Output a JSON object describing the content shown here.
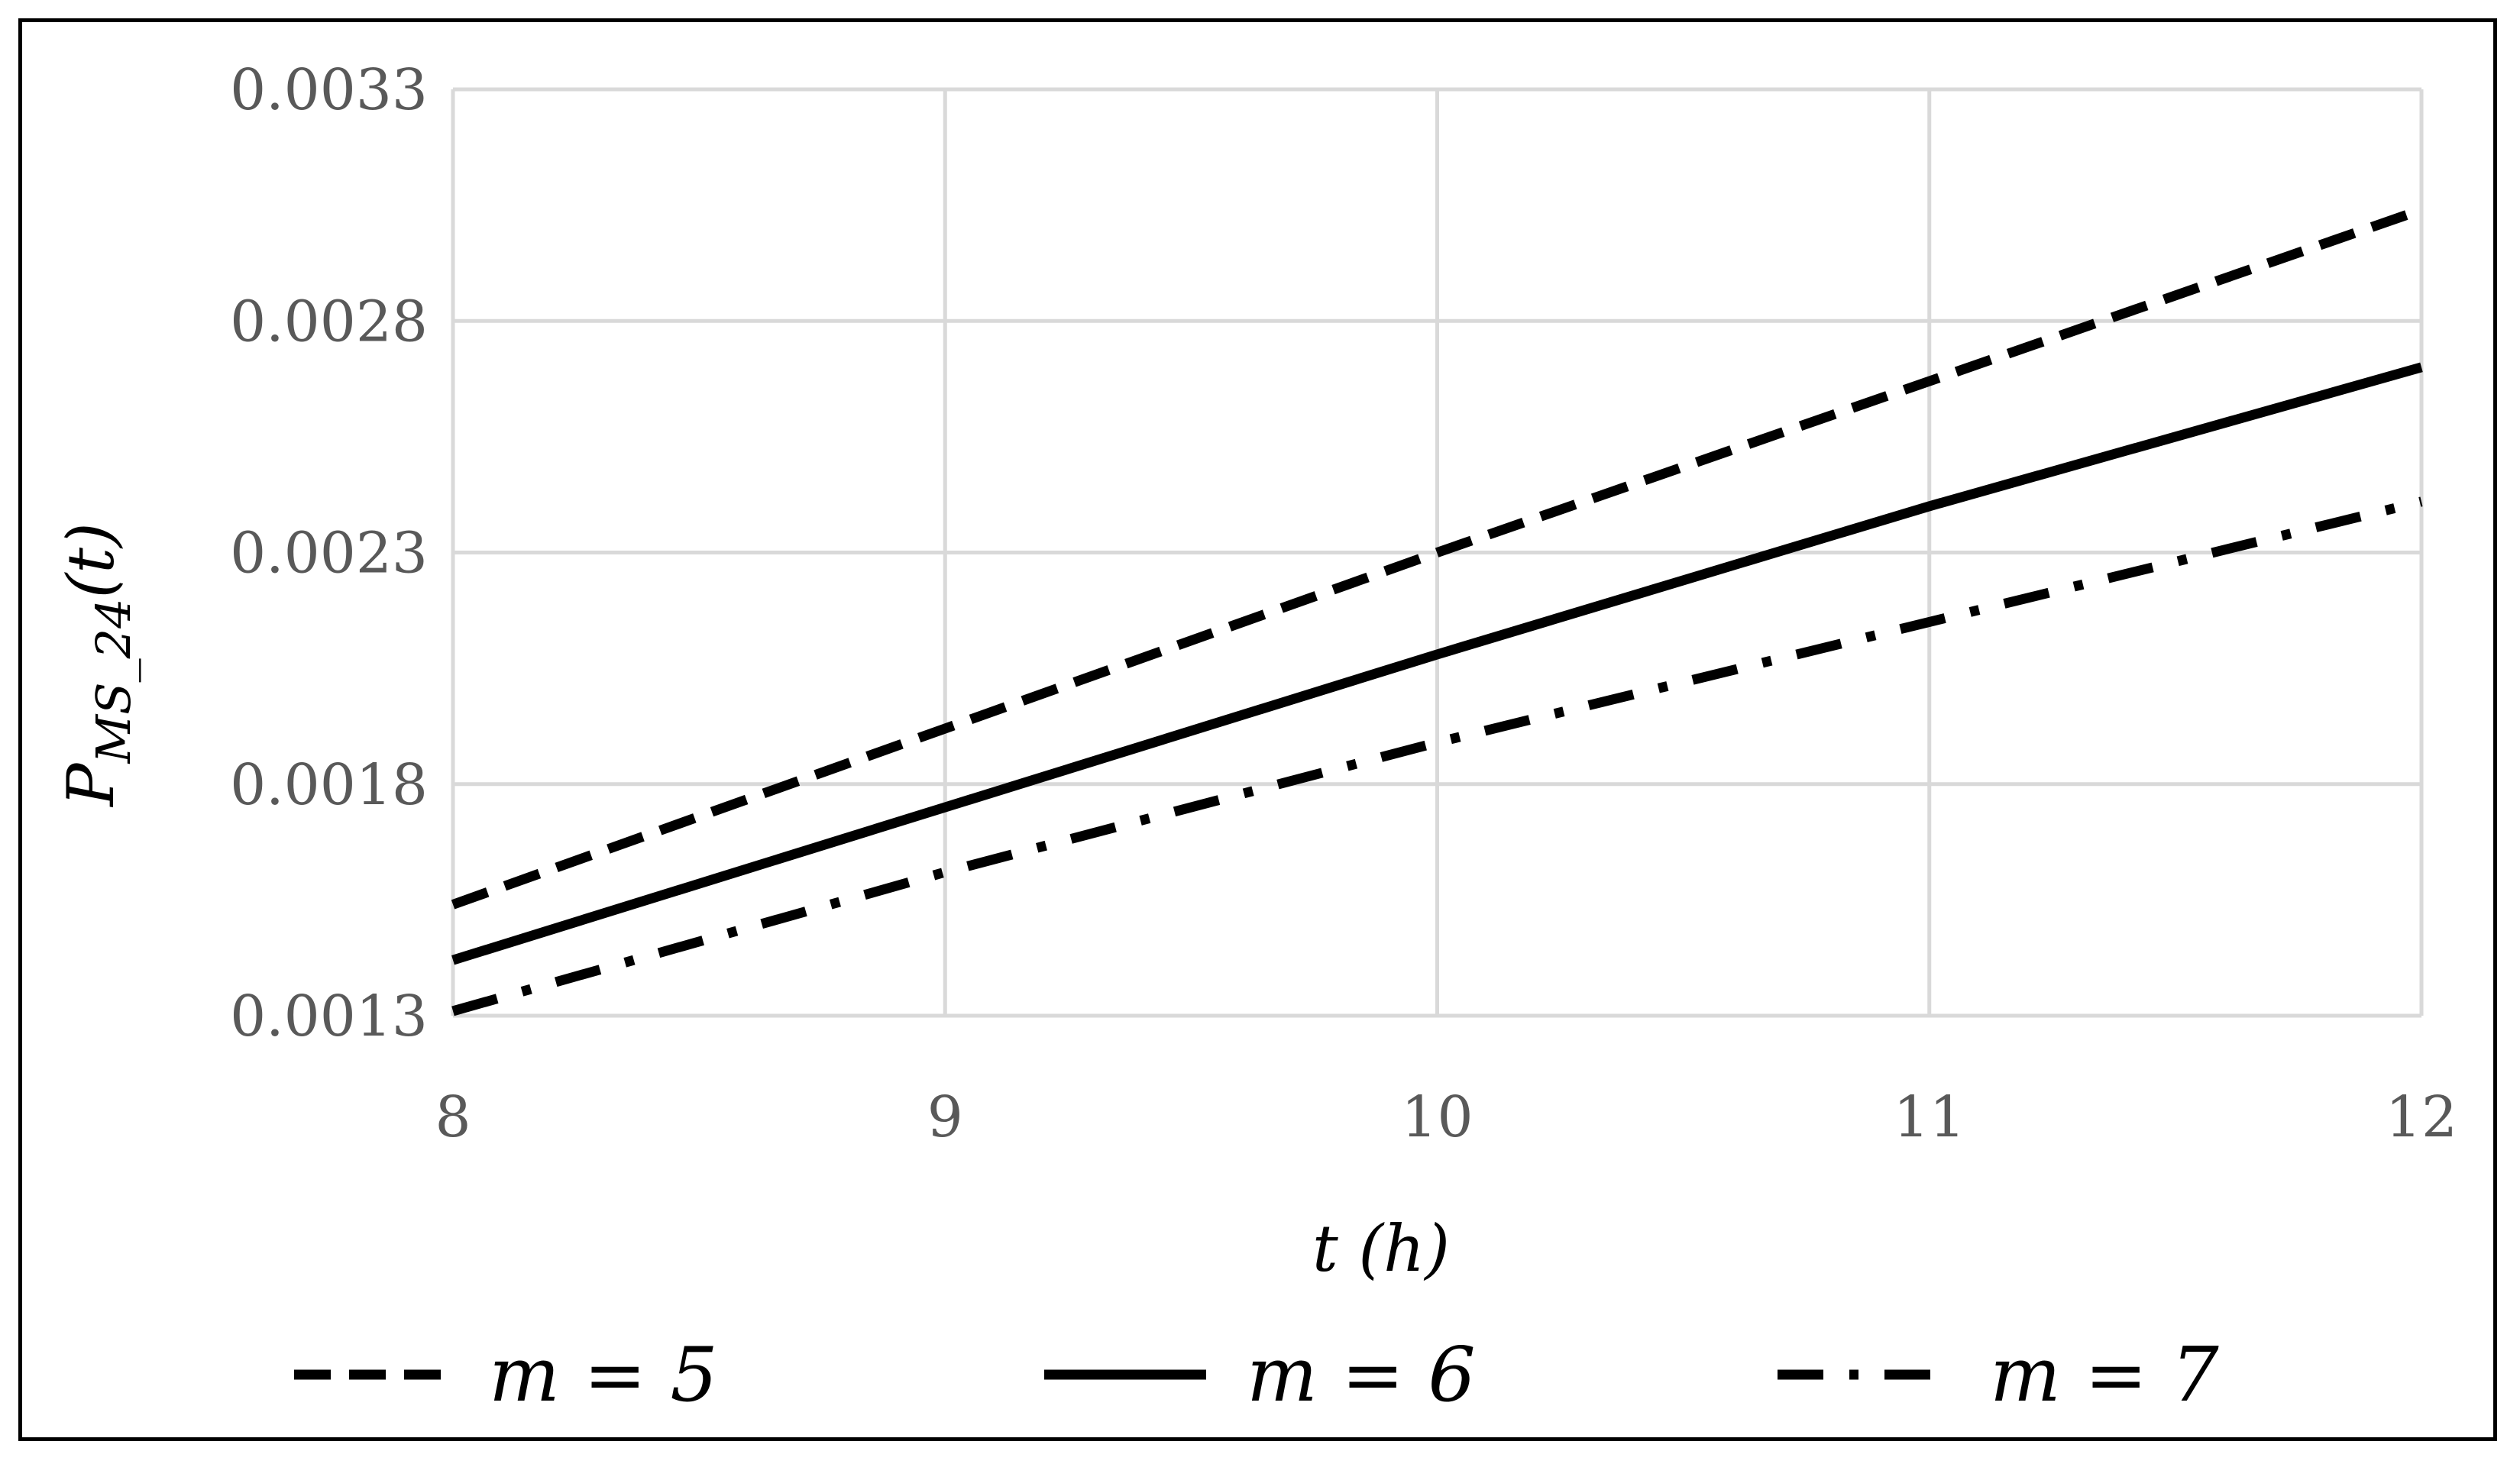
{
  "chart_data": {
    "type": "line",
    "x": [
      8,
      9,
      10,
      11,
      12
    ],
    "xlabel": "t (h)",
    "ylabel": "P_MS_24(t)",
    "ylabel_parts": {
      "main": "P",
      "sub": "MS_24",
      "arg": "(t)"
    },
    "xlim": [
      8,
      12
    ],
    "ylim": [
      0.0013,
      0.0033
    ],
    "x_ticks": [
      "8",
      "9",
      "10",
      "11",
      "12"
    ],
    "y_ticks": [
      "0.0013",
      "0.0018",
      "0.0023",
      "0.0028",
      "0.0033"
    ],
    "y_tick_values": [
      0.0013,
      0.0018,
      0.0023,
      0.0028,
      0.0033
    ],
    "grid": true,
    "legend_position": "bottom",
    "series": [
      {
        "name": "m = 5",
        "style": "dashed",
        "values": [
          0.00154,
          0.00192,
          0.0023,
          0.00267,
          0.00304
        ]
      },
      {
        "name": "m = 6",
        "style": "solid",
        "values": [
          0.00142,
          0.00175,
          0.00208,
          0.0024,
          0.0027
        ]
      },
      {
        "name": "m = 7",
        "style": "dash-dot",
        "values": [
          0.00131,
          0.00161,
          0.00189,
          0.00215,
          0.00241
        ]
      }
    ],
    "line_color": "#000000",
    "grid_color": "#d9d9d9",
    "tick_color": "#595959"
  }
}
